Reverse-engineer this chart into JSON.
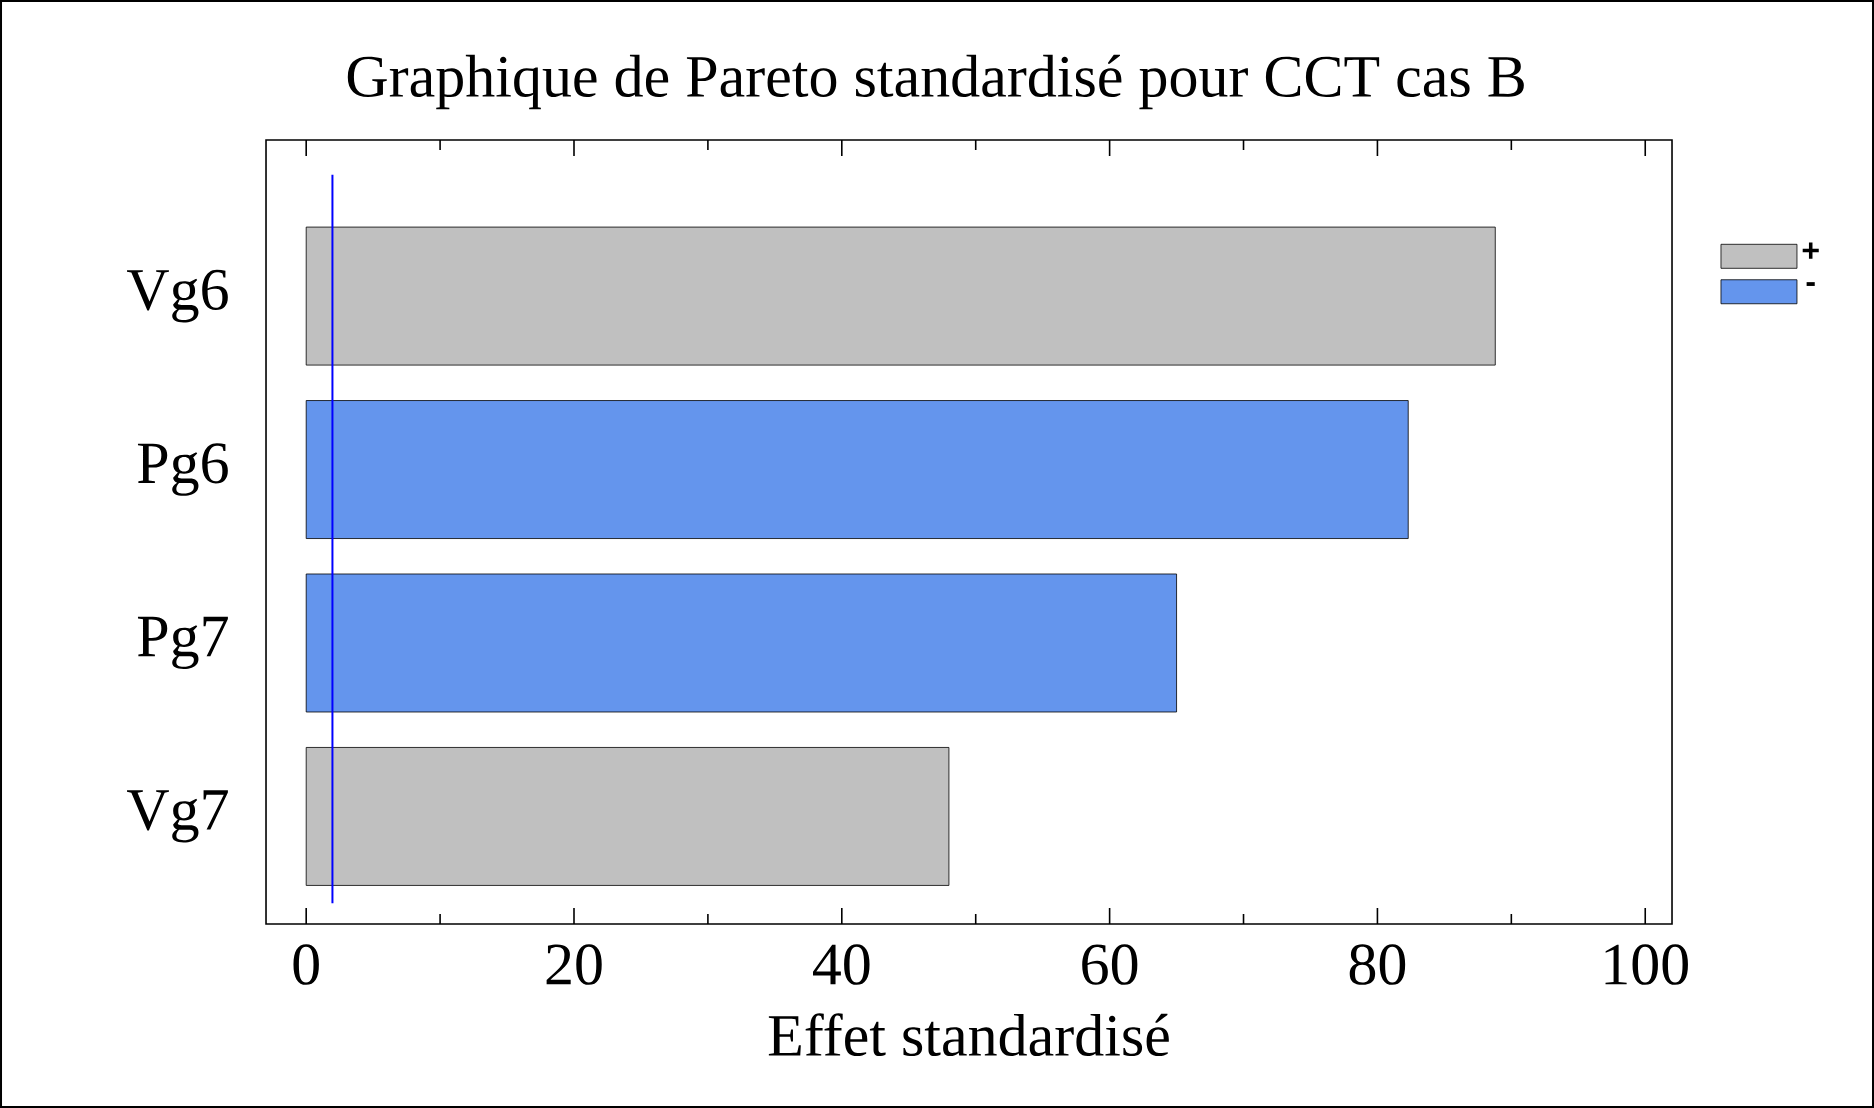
{
  "chart_data": {
    "type": "bar",
    "orientation": "horizontal",
    "title": "Graphique de Pareto standardisé pour CCT cas B",
    "xlabel": "Effet standardisé",
    "categories": [
      "Vg6",
      "Pg6",
      "Pg7",
      "Vg7"
    ],
    "series": [
      {
        "name": "+",
        "color": "#c0c0c0",
        "values": [
          88.8,
          null,
          null,
          48.0
        ]
      },
      {
        "name": "-",
        "color": "#6495ed",
        "values": [
          null,
          82.3,
          65.0,
          null
        ]
      }
    ],
    "xlim": [
      -3,
      102
    ],
    "xticks": [
      0,
      20,
      40,
      60,
      80,
      100
    ],
    "ref_lines": [
      {
        "axis": "x",
        "value": 1.96,
        "color": "#0000ff"
      }
    ],
    "grid": false,
    "legend": "top right"
  }
}
